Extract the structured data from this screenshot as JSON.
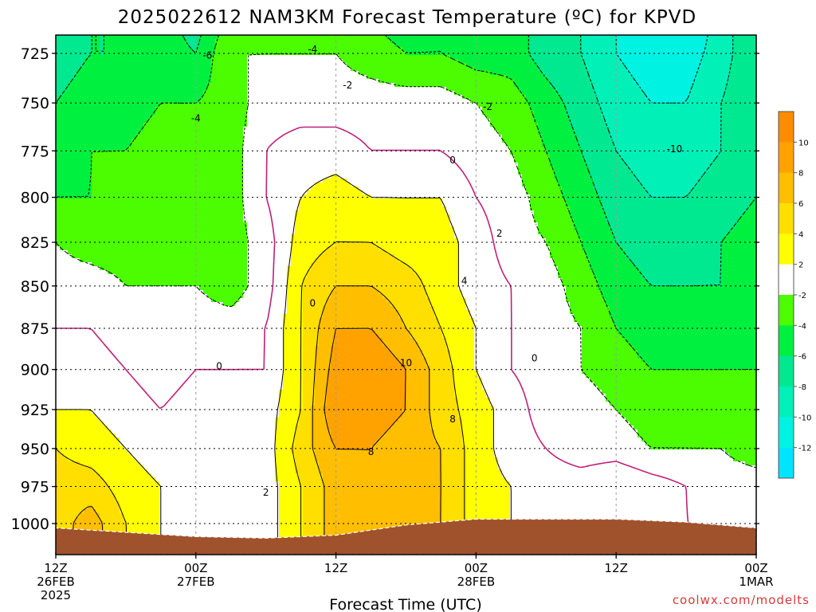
{
  "chart_data": {
    "type": "heatmap",
    "title": "2025022612 NAM3KM Forecast Temperature (ºC) for KPVD",
    "xlabel": "Forecast Time (UTC)",
    "ylabel": "",
    "y_scale": "pressure (hPa), inverted",
    "ylim": [
      1020,
      710
    ],
    "xlim_hours_from_start": [
      0,
      60
    ],
    "y_ticks": [
      725,
      750,
      775,
      800,
      825,
      850,
      875,
      900,
      925,
      950,
      975,
      1000
    ],
    "x_ticks": [
      {
        "hour": 0,
        "lines": [
          "12Z",
          "26FEB",
          "2025"
        ]
      },
      {
        "hour": 12,
        "lines": [
          "00Z",
          "27FEB"
        ]
      },
      {
        "hour": 24,
        "lines": [
          "12Z"
        ]
      },
      {
        "hour": 36,
        "lines": [
          "00Z",
          "28FEB"
        ]
      },
      {
        "hour": 48,
        "lines": [
          "12Z"
        ]
      },
      {
        "hour": 60,
        "lines": [
          "00Z",
          "1MAR"
        ]
      }
    ],
    "grid": true,
    "colorbar": {
      "placement": "right",
      "tick_labels": [
        "10",
        "8",
        "6",
        "4",
        "2",
        "-2",
        "-4",
        "-6",
        "-8",
        "-10",
        "-12"
      ],
      "bands": [
        {
          "lo": 10,
          "hi": 12,
          "color": "#ff8c00"
        },
        {
          "lo": 8,
          "hi": 10,
          "color": "#ffa200"
        },
        {
          "lo": 6,
          "hi": 8,
          "color": "#ffbe00"
        },
        {
          "lo": 4,
          "hi": 6,
          "color": "#ffdf00"
        },
        {
          "lo": 2,
          "hi": 4,
          "color": "#ffff00"
        },
        {
          "lo": -2,
          "hi": 2,
          "color": "#ffffff"
        },
        {
          "lo": -4,
          "hi": -2,
          "color": "#4cfc00"
        },
        {
          "lo": -6,
          "hi": -4,
          "color": "#00f040"
        },
        {
          "lo": -8,
          "hi": -6,
          "color": "#00e890"
        },
        {
          "lo": -10,
          "hi": -8,
          "color": "#00f0b8"
        },
        {
          "lo": -12,
          "hi": -10,
          "color": "#00f2e2"
        },
        {
          "lo": -14,
          "hi": -12,
          "color": "#00e4ff"
        }
      ]
    },
    "x_hours": [
      0,
      3,
      6,
      9,
      12,
      15,
      18,
      21,
      24,
      27,
      30,
      33,
      36,
      39,
      42,
      45,
      48,
      51,
      54,
      57,
      60
    ],
    "p_levels": [
      710,
      725,
      750,
      775,
      800,
      825,
      850,
      875,
      900,
      925,
      950,
      975,
      1000,
      1015
    ],
    "temperature_c": [
      [
        -7,
        -6,
        -6,
        -5,
        -7,
        -3,
        -3,
        -3,
        -3,
        -4,
        -5,
        -4,
        -5,
        -5,
        -7,
        -8,
        -10,
        -11,
        -12,
        -9,
        -6
      ],
      [
        -7,
        -6,
        -6,
        -5,
        -6,
        -2,
        -2,
        -2,
        -2,
        -3,
        -4,
        -4,
        -5,
        -5,
        -7,
        -8,
        -10,
        -11,
        -11,
        -9,
        -6
      ],
      [
        -6,
        -5,
        -5,
        -4,
        -4,
        -3,
        -1,
        -1,
        -1,
        -1,
        -1,
        -1,
        -2,
        -3,
        -5,
        -7,
        -9,
        -10,
        -10,
        -8,
        -6
      ],
      [
        -5,
        -4,
        -4,
        -3,
        -3,
        -3,
        0,
        1,
        1,
        0,
        0,
        0,
        -1,
        -2,
        -4,
        -6,
        -8,
        -9,
        -9,
        -8,
        -6
      ],
      [
        -4,
        -4,
        -3,
        -3,
        -3,
        -3,
        0,
        2,
        3,
        2,
        2,
        2,
        0,
        -1,
        -3,
        -5,
        -7,
        -8,
        -8,
        -7,
        -6
      ],
      [
        -2,
        -3,
        -3,
        -2,
        -3,
        -3,
        -1,
        3,
        4,
        4,
        3,
        3,
        1,
        -1,
        -2,
        -4,
        -6,
        -7,
        -7,
        -6,
        -5
      ],
      [
        -1,
        -1,
        -2,
        -2,
        -2,
        -3,
        -1,
        4,
        6,
        6,
        5,
        3,
        1,
        0,
        -1,
        -3,
        -5,
        -6,
        -6,
        -6,
        -5
      ],
      [
        0,
        0,
        -1,
        -2,
        -1,
        -1,
        0,
        4,
        8,
        8,
        6,
        4,
        2,
        0,
        -1,
        -2,
        -4,
        -5,
        -5,
        -5,
        -4
      ],
      [
        1,
        1,
        0,
        -1,
        0,
        0,
        0,
        4,
        9,
        10,
        8,
        5,
        2,
        0,
        -1,
        -2,
        -3,
        -4,
        -4,
        -4,
        -4
      ],
      [
        2,
        2,
        1,
        0,
        1,
        1,
        1,
        4,
        10,
        9,
        8,
        5,
        3,
        1,
        -1,
        -1,
        -2,
        -3,
        -3,
        -3,
        -3
      ],
      [
        4,
        3,
        2,
        1,
        2,
        1,
        1,
        5,
        8,
        8,
        7,
        6,
        3,
        1,
        0,
        -1,
        -1,
        -2,
        -2,
        -2,
        -3
      ],
      [
        5,
        5,
        3,
        2,
        1,
        0,
        1,
        4,
        7,
        8,
        8,
        6,
        3,
        2,
        1,
        1,
        2,
        1,
        0,
        -1,
        -1
      ],
      [
        5,
        7,
        4,
        2,
        0,
        0,
        1,
        4,
        7,
        8,
        7,
        6,
        3,
        2,
        1,
        1,
        1,
        1,
        0,
        0,
        -1
      ],
      [
        5,
        7,
        4,
        2,
        0,
        0,
        1,
        4,
        7,
        8,
        7,
        6,
        3,
        2,
        1,
        1,
        1,
        1,
        0,
        0,
        -1
      ]
    ],
    "contour_labels": [
      {
        "value": "-6",
        "hour": 13,
        "p": 726
      },
      {
        "value": "-4",
        "hour": 22,
        "p": 723
      },
      {
        "value": "-2",
        "hour": 25,
        "p": 741
      },
      {
        "value": "-2",
        "hour": 37,
        "p": 752
      },
      {
        "value": "-4",
        "hour": 12,
        "p": 758
      },
      {
        "value": "-10",
        "hour": 53,
        "p": 774
      },
      {
        "value": "0",
        "hour": 34,
        "p": 780
      },
      {
        "value": "2",
        "hour": 38,
        "p": 820
      },
      {
        "value": "4",
        "hour": 35,
        "p": 847
      },
      {
        "value": "0",
        "hour": 22,
        "p": 860
      },
      {
        "value": "0",
        "hour": 41,
        "p": 893
      },
      {
        "value": "10",
        "hour": 30,
        "p": 896
      },
      {
        "value": "0",
        "hour": 14,
        "p": 898
      },
      {
        "value": "8",
        "hour": 34,
        "p": 931
      },
      {
        "value": "8",
        "hour": 27,
        "p": 952
      },
      {
        "value": "2",
        "hour": 18,
        "p": 979
      }
    ],
    "surface_pressure_hpa": [
      {
        "hour": 0,
        "p": 1003
      },
      {
        "hour": 6,
        "p": 1006
      },
      {
        "hour": 12,
        "p": 1009
      },
      {
        "hour": 18,
        "p": 1010
      },
      {
        "hour": 24,
        "p": 1008
      },
      {
        "hour": 30,
        "p": 1001
      },
      {
        "hour": 36,
        "p": 997
      },
      {
        "hour": 42,
        "p": 997
      },
      {
        "hour": 48,
        "p": 997
      },
      {
        "hour": 54,
        "p": 999
      },
      {
        "hour": 60,
        "p": 1003
      }
    ],
    "surface_color": "#a0522d",
    "contour_color": "#000000",
    "zero_contour_color": "#c0207a"
  },
  "credit": "coolwx.com/modelts"
}
